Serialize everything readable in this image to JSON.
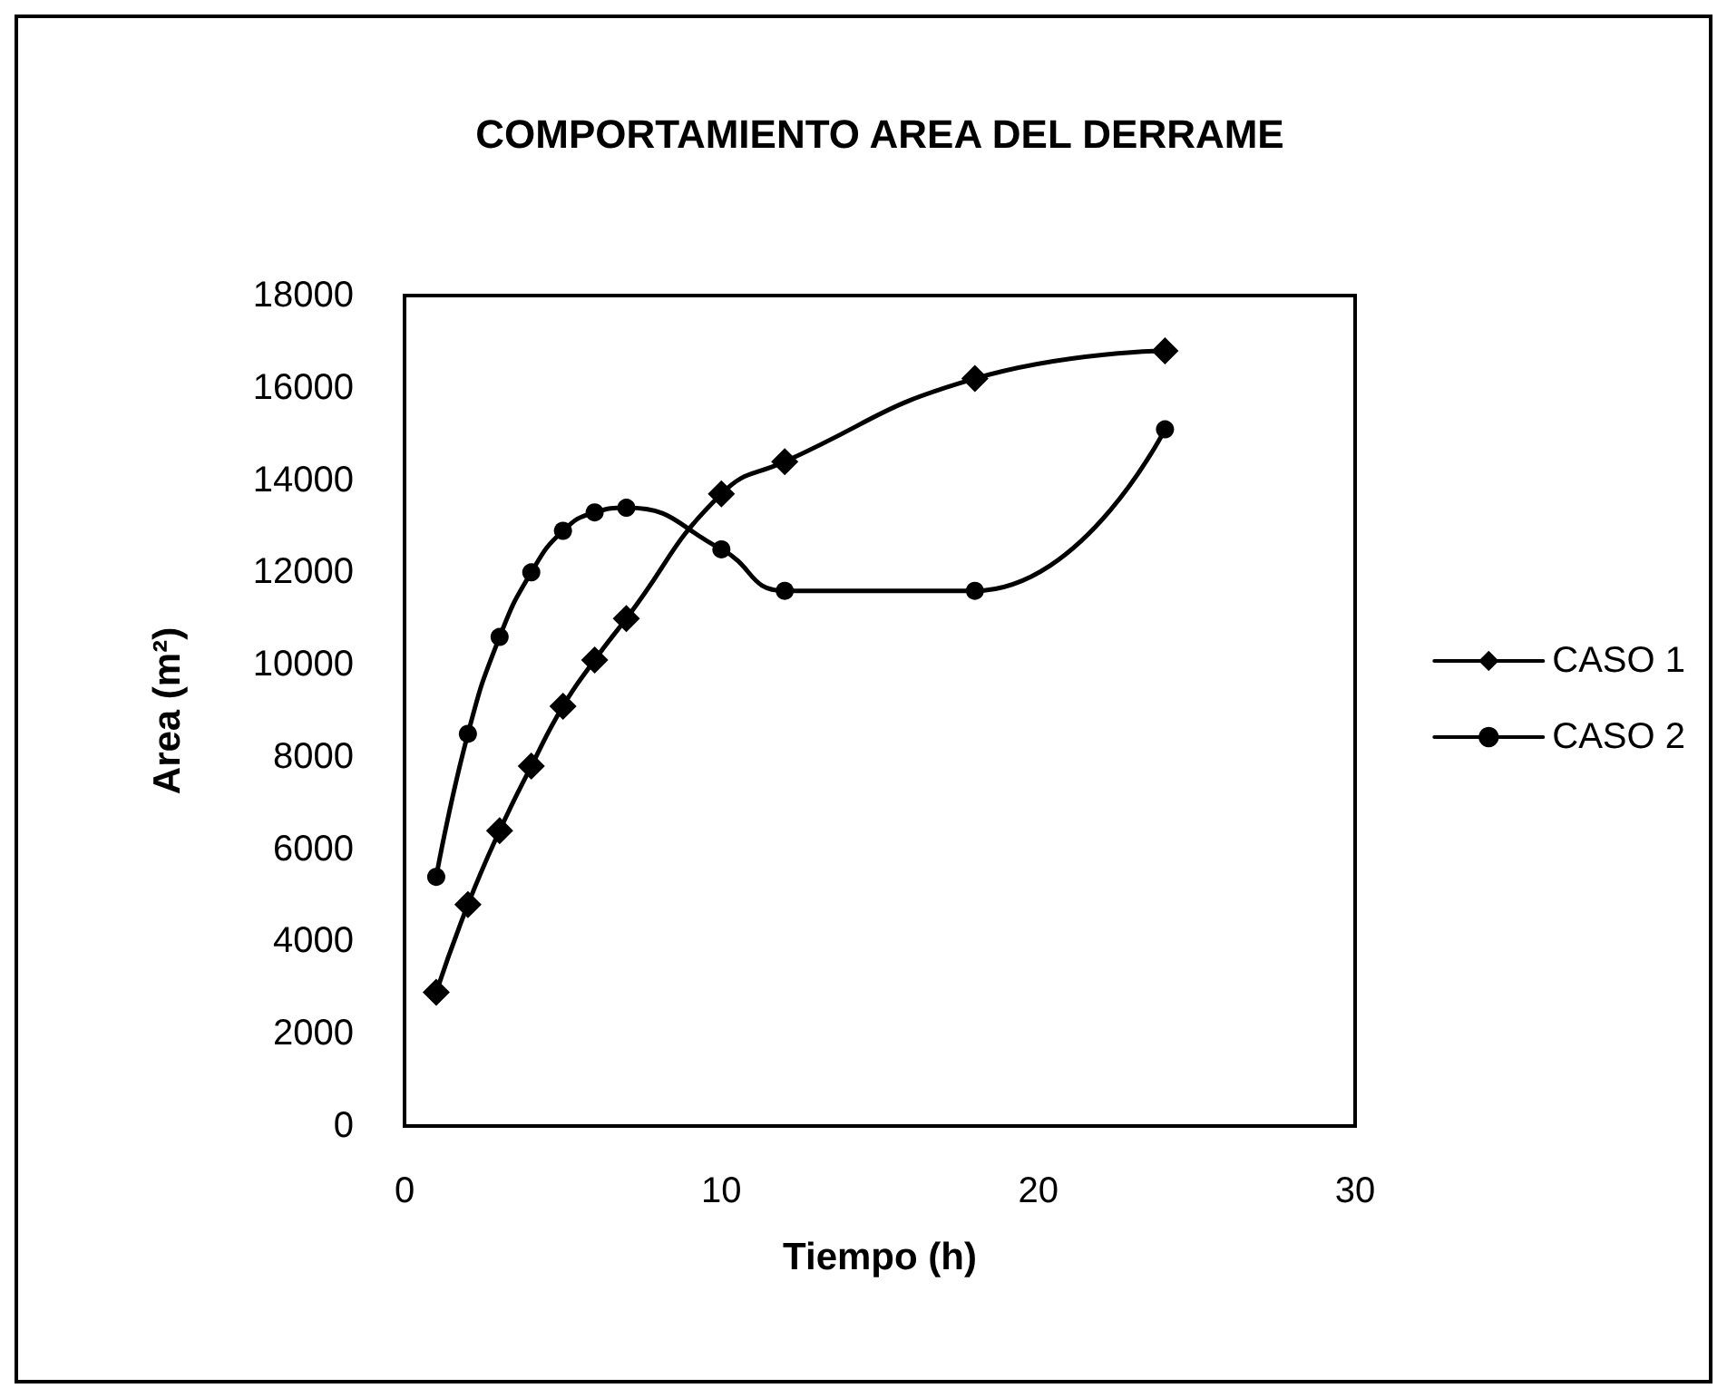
{
  "chart_data": {
    "type": "line",
    "title": "COMPORTAMIENTO AREA DEL DERRAME",
    "xlabel": "Tiempo (h)",
    "ylabel": "Area (m²)",
    "x": [
      1,
      2,
      3,
      4,
      5,
      6,
      7,
      10,
      12,
      18,
      24
    ],
    "series": [
      {
        "name": "CASO 1",
        "color": "#000000",
        "marker": "diamond",
        "values": [
          2900,
          4800,
          6400,
          7800,
          9100,
          10100,
          11000,
          13700,
          14400,
          16200,
          16800
        ]
      },
      {
        "name": "CASO 2",
        "color": "#000000",
        "marker": "circle",
        "values": [
          5400,
          8500,
          10600,
          12000,
          12900,
          13300,
          13400,
          12500,
          11600,
          11600,
          15100
        ]
      }
    ],
    "xlim": [
      0,
      30
    ],
    "xticks": [
      0,
      10,
      20,
      30
    ],
    "ylim": [
      0,
      18000
    ],
    "yticks": [
      0,
      2000,
      4000,
      6000,
      8000,
      10000,
      12000,
      14000,
      16000,
      18000
    ],
    "grid": false,
    "legend": "right",
    "line_style": "solid"
  }
}
